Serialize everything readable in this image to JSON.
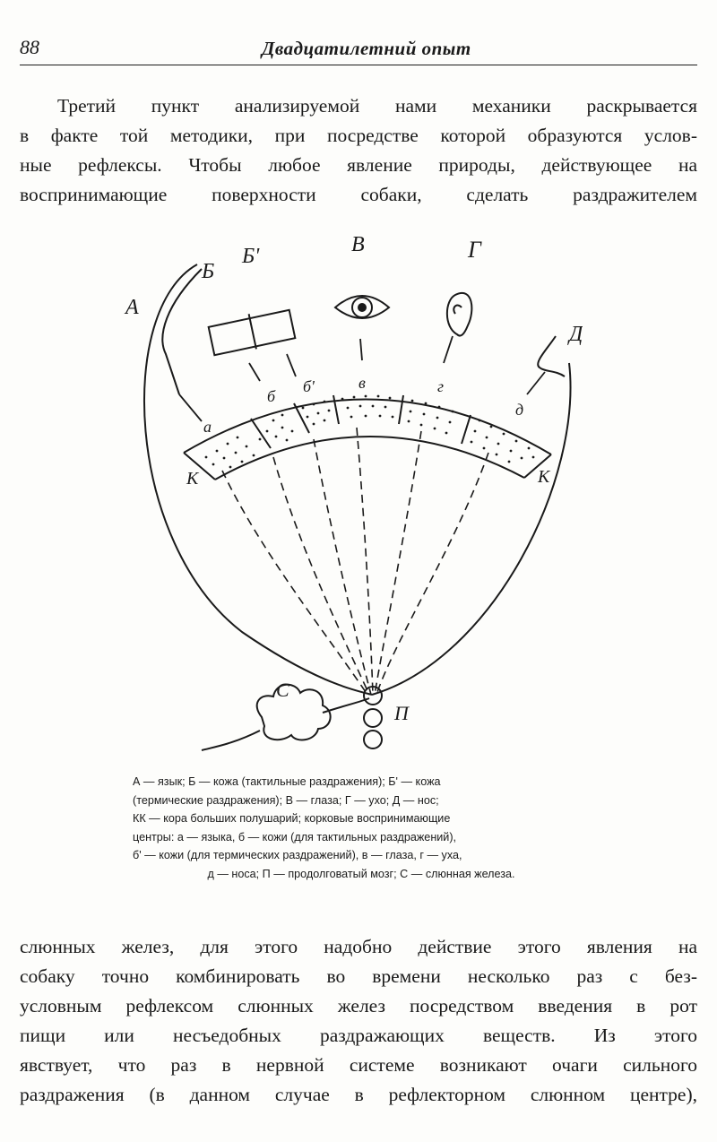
{
  "header": {
    "page_number": "88",
    "running_title": "Двадцатилетний опыт"
  },
  "paragraph_top": [
    "Третий пункт анализируемой нами механики раскрывается",
    "в факте той методики, при посредстве которой образуются услов-",
    "ные рефлексы. Чтобы любое явление природы, действующее на",
    "воспринимающие поверхности собаки, сделать раздражителем"
  ],
  "figure": {
    "organ_labels": {
      "A": "А",
      "B": "Б",
      "B_prime": "Б'",
      "V": "В",
      "G": "Г",
      "D": "Д"
    },
    "cortex_labels": {
      "a": "а",
      "b": "б",
      "b_prime": "б'",
      "v": "в",
      "g": "г",
      "d": "д"
    },
    "kk_left": "К",
    "kk_right": "К",
    "gland_label": "С",
    "medulla_label": "П"
  },
  "caption_lines": [
    "А — язык;  Б — кожа  (тактильные раздражения);  Б' — кожа",
    "(термические раздражения);  В — глаза;  Г — ухо;  Д — нос;",
    "КК — кора больших полушарий; корковые воспринимающие",
    "центры: а — языка, б — кожи (для тактильных раздражений),",
    "б' — кожи (для термических раздражений), в — глаза, г — уха,",
    "д — носа; П — продолговатый мозг; С — слюнная железа."
  ],
  "paragraph_bottom": [
    "слюнных желез, для этого надобно действие этого явления на",
    "собаку точно комбинировать во времени несколько раз с без-",
    "условным рефлексом слюнных желез посредством введения в рот",
    "пищи или несъедобных раздражающих веществ. Из этого",
    "явствует, что раз в нервной системе возникают очаги сильного",
    "раздражения (в данном случае в рефлекторном слюнном центре),"
  ]
}
